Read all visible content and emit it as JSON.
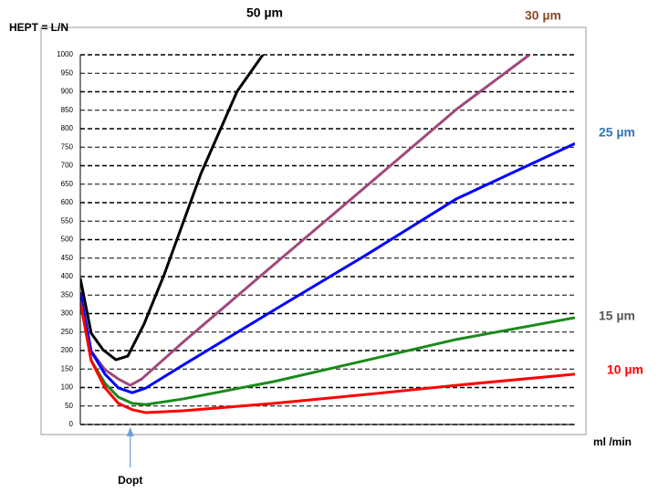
{
  "chart_data": {
    "type": "line",
    "title": "HEPT = L/N",
    "x_label": "ml /min",
    "xlim": [
      0,
      100
    ],
    "ylim": [
      0,
      1000
    ],
    "yticks": [
      0,
      50,
      100,
      150,
      200,
      250,
      300,
      350,
      400,
      450,
      500,
      550,
      600,
      650,
      700,
      750,
      800,
      850,
      900,
      950,
      1000
    ],
    "grid": true,
    "annotation": {
      "text": "Dopt",
      "x": 10.1
    },
    "series": [
      {
        "name": "50 µm",
        "color": "#000000",
        "label_color": "#000000",
        "x": [
          0,
          2.2,
          4.6,
          7.2,
          9.6,
          12.9,
          17,
          24.4,
          31.7,
          36.9
        ],
        "values": [
          395,
          247,
          202,
          175,
          185,
          272,
          407,
          679,
          901,
          1000
        ]
      },
      {
        "name": "30 µm",
        "color": "#a0487a",
        "label_color": "#8b4a26",
        "x": [
          0,
          2.2,
          5,
          7.7,
          10.1,
          12.4,
          20.7,
          39.1,
          57.6,
          76,
          90.8
        ],
        "values": [
          346,
          198,
          148,
          123,
          106,
          123,
          222,
          432,
          642,
          852,
          1000
        ]
      },
      {
        "name": "25 µm",
        "color": "#0000ff",
        "label_color": "#2e75b6",
        "x": [
          0,
          2.2,
          5,
          7.7,
          10.5,
          13.3,
          20.7,
          39.1,
          57.6,
          76,
          100
        ],
        "values": [
          358,
          198,
          136,
          99,
          86,
          99,
          160,
          309,
          457,
          610,
          760
        ]
      },
      {
        "name": "15 µm",
        "color": "#1a8a1a",
        "label_color": "#595959",
        "x": [
          0,
          2.2,
          5,
          7.7,
          10.5,
          13.3,
          20.7,
          39.1,
          57.6,
          76,
          100
        ],
        "values": [
          333,
          173,
          111,
          74,
          57,
          54,
          69,
          116,
          173,
          230,
          289
        ]
      },
      {
        "name": "10 µm",
        "color": "#ff0000",
        "label_color": "#ff0000",
        "x": [
          0,
          2.2,
          5,
          7.7,
          10.5,
          13.3,
          20.7,
          39.1,
          57.6,
          76,
          100
        ],
        "values": [
          333,
          173,
          99,
          57,
          40,
          32,
          37,
          57,
          81,
          106,
          136
        ]
      }
    ]
  }
}
